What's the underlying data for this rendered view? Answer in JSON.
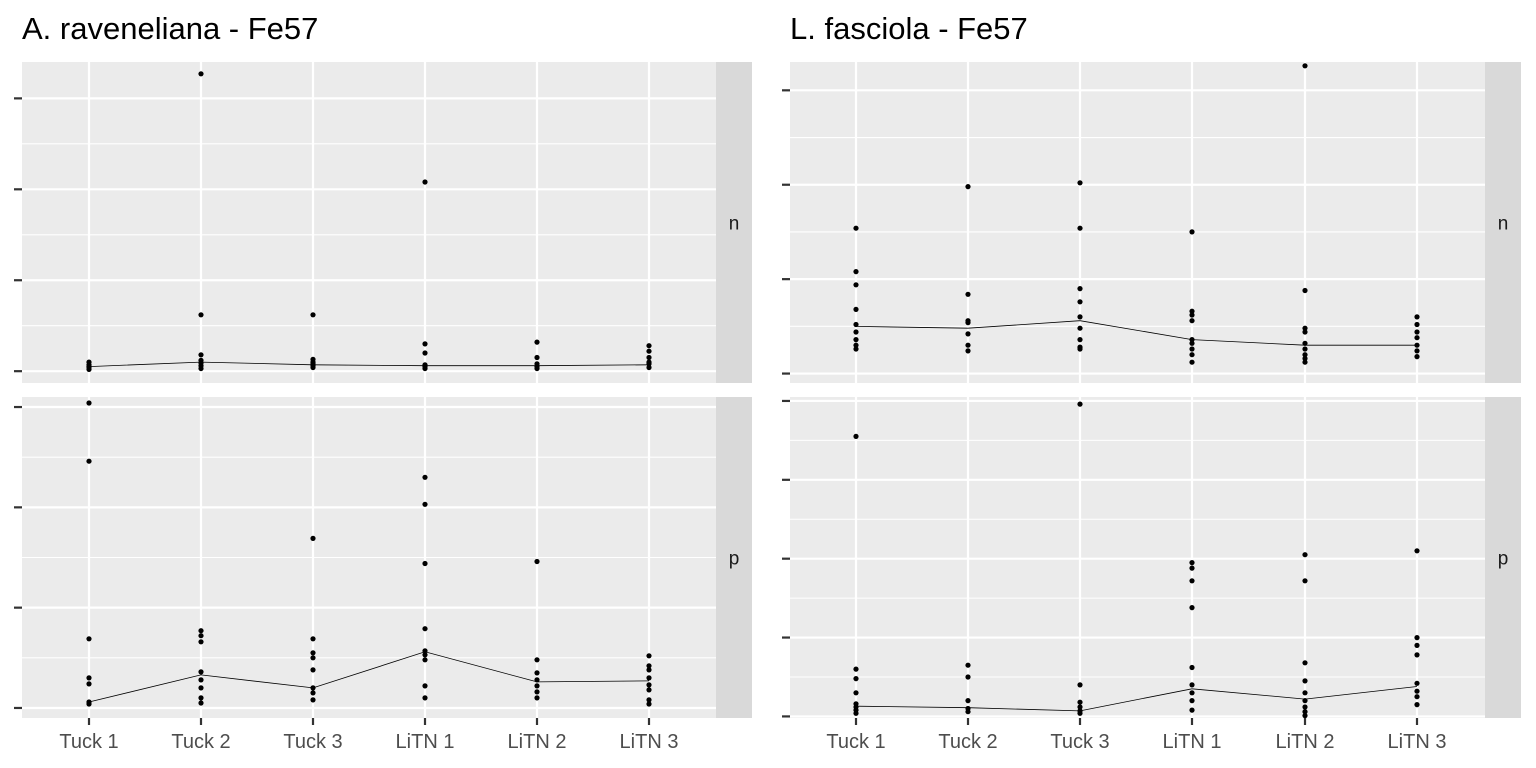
{
  "chart_data": [
    {
      "type": "scatter",
      "title": "A. raveneliana - Fe57",
      "categories": [
        "Tuck 1",
        "Tuck 2",
        "Tuck 3",
        "LiTN 1",
        "LiTN 2",
        "LiTN 3"
      ],
      "facets": [
        "n",
        "p"
      ],
      "grid": true,
      "y_tick_labels_visible": false,
      "panels": [
        {
          "facet": "n",
          "ylim": [
            -0.13,
            3.4
          ],
          "points": [
            [
              0.1,
              0.05,
              0.02,
              0.07,
              0.04
            ],
            [
              3.27,
              0.62,
              0.18,
              0.12,
              0.06,
              0.03,
              0.09
            ],
            [
              0.62,
              0.13,
              0.08,
              0.04,
              0.1,
              0.06
            ],
            [
              2.08,
              0.3,
              0.2,
              0.05,
              0.03,
              0.07
            ],
            [
              0.32,
              0.15,
              0.08,
              0.03,
              0.05
            ],
            [
              0.28,
              0.22,
              0.15,
              0.08,
              0.04,
              0.1
            ]
          ],
          "mean_line": [
            0.05,
            0.1,
            0.07,
            0.06,
            0.06,
            0.07
          ]
        },
        {
          "facet": "p",
          "ylim": [
            -0.1,
            3.1
          ],
          "points": [
            [
              3.04,
              2.46,
              0.69,
              0.3,
              0.24,
              0.06,
              0.04
            ],
            [
              0.77,
              0.72,
              0.66,
              0.36,
              0.28,
              0.2,
              0.1,
              0.05
            ],
            [
              1.69,
              0.69,
              0.55,
              0.5,
              0.38,
              0.2,
              0.15,
              0.08
            ],
            [
              2.3,
              2.03,
              1.44,
              0.79,
              0.57,
              0.53,
              0.48,
              0.22,
              0.1
            ],
            [
              1.46,
              0.48,
              0.35,
              0.28,
              0.22,
              0.16,
              0.1
            ],
            [
              0.52,
              0.42,
              0.38,
              0.3,
              0.23,
              0.18,
              0.08,
              0.04
            ]
          ],
          "mean_line": [
            0.06,
            0.33,
            0.2,
            0.56,
            0.26,
            0.27
          ]
        }
      ]
    },
    {
      "type": "scatter",
      "title": "L. fasciola - Fe57",
      "categories": [
        "Tuck 1",
        "Tuck 2",
        "Tuck 3",
        "LiTN 1",
        "LiTN 2",
        "LiTN 3"
      ],
      "facets": [
        "n",
        "p"
      ],
      "grid": true,
      "y_tick_labels_visible": false,
      "panels": [
        {
          "facet": "n",
          "ylim": [
            -0.05,
            1.65
          ],
          "points": [
            [
              0.77,
              0.54,
              0.47,
              0.34,
              0.26,
              0.22,
              0.18,
              0.15,
              0.13
            ],
            [
              0.99,
              0.42,
              0.28,
              0.27,
              0.21,
              0.15,
              0.12
            ],
            [
              1.01,
              0.77,
              0.45,
              0.38,
              0.3,
              0.24,
              0.18,
              0.14,
              0.13
            ],
            [
              0.75,
              0.33,
              0.31,
              0.28,
              0.18,
              0.16,
              0.13,
              0.1,
              0.06
            ],
            [
              1.63,
              0.44,
              0.24,
              0.22,
              0.16,
              0.13,
              0.1,
              0.08,
              0.06
            ],
            [
              0.3,
              0.26,
              0.22,
              0.19,
              0.15,
              0.12,
              0.09
            ]
          ],
          "mean_line": [
            0.25,
            0.24,
            0.28,
            0.18,
            0.15,
            0.15
          ]
        },
        {
          "facet": "p",
          "ylim": [
            -0.02,
            4.05
          ],
          "points": [
            [
              3.55,
              0.6,
              0.48,
              0.3,
              0.16,
              0.12,
              0.08,
              0.04
            ],
            [
              0.65,
              0.5,
              0.2,
              0.1,
              0.06
            ],
            [
              3.96,
              0.4,
              0.18,
              0.12,
              0.07,
              0.04
            ],
            [
              1.95,
              1.88,
              1.72,
              1.38,
              0.62,
              0.4,
              0.3,
              0.2,
              0.08
            ],
            [
              2.05,
              1.72,
              0.68,
              0.45,
              0.3,
              0.2,
              0.12,
              0.06,
              0.01
            ],
            [
              2.1,
              1.0,
              0.9,
              0.78,
              0.42,
              0.32,
              0.25,
              0.15
            ]
          ],
          "mean_line": [
            0.13,
            0.11,
            0.07,
            0.35,
            0.22,
            0.38
          ]
        }
      ]
    }
  ]
}
